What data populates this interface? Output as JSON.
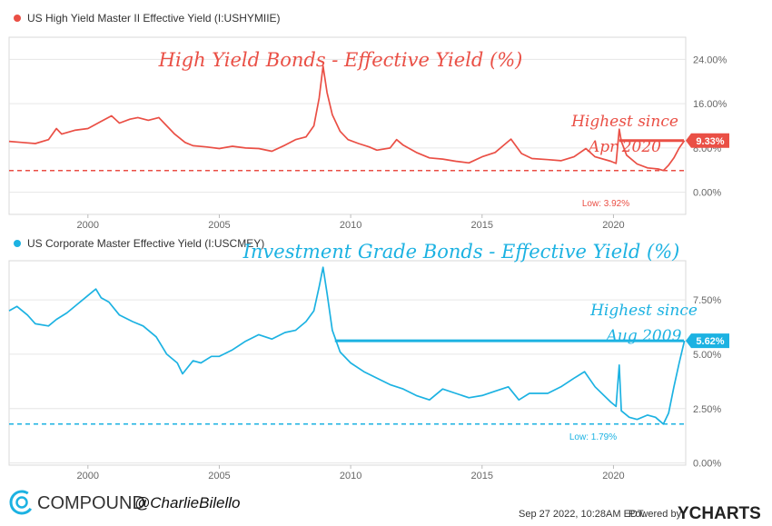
{
  "footer": {
    "brand": "COMPOUND",
    "handle": "@CharlieBilello",
    "timestamp": "Sep 27 2022, 10:28AM EDT.",
    "powered_by": "Powered by",
    "ycharts": "YCHARTS"
  },
  "colors": {
    "high_yield": "#ea4f45",
    "investment_grade": "#1cb2e2"
  },
  "chart_data": [
    {
      "type": "line",
      "legend": "US High Yield Master II Effective Yield (I:USHYMIIE)",
      "title": "High Yield Bonds - Effective Yield (%)",
      "x_ticks": [
        "2000",
        "2005",
        "2010",
        "2015",
        "2020"
      ],
      "y_ticks": [
        "0.00%",
        "8.00%",
        "16.00%",
        "24.00%"
      ],
      "xlim": [
        1997.0,
        2022.75
      ],
      "ylim": [
        -4,
        28
      ],
      "series": [
        {
          "x": [
            1997.0,
            1997.5,
            1998.0,
            1998.5,
            1998.8,
            1999.0,
            1999.5,
            2000.0,
            2000.5,
            2000.9,
            2001.2,
            2001.6,
            2001.9,
            2002.3,
            2002.7,
            2002.9,
            2003.3,
            2003.7,
            2004.0,
            2004.5,
            2005.0,
            2005.5,
            2006.0,
            2006.5,
            2007.0,
            2007.5,
            2007.9,
            2008.3,
            2008.6,
            2008.8,
            2008.95,
            2009.1,
            2009.3,
            2009.6,
            2009.9,
            2010.3,
            2010.7,
            2011.0,
            2011.5,
            2011.75,
            2012.0,
            2012.5,
            2013.0,
            2013.5,
            2014.0,
            2014.5,
            2015.0,
            2015.5,
            2015.9,
            2016.1,
            2016.5,
            2016.9,
            2017.5,
            2018.0,
            2018.5,
            2018.95,
            2019.3,
            2019.9,
            2020.1,
            2020.22,
            2020.3,
            2020.5,
            2020.9,
            2021.3,
            2021.7,
            2021.9,
            2022.1,
            2022.3,
            2022.5,
            2022.7
          ],
          "y": [
            9.2,
            9.0,
            8.8,
            9.5,
            11.5,
            10.5,
            11.2,
            11.5,
            12.8,
            13.8,
            12.5,
            13.2,
            13.5,
            13.0,
            13.5,
            12.5,
            10.5,
            9.0,
            8.4,
            8.2,
            7.9,
            8.3,
            8.0,
            7.9,
            7.4,
            8.5,
            9.5,
            10.0,
            12.0,
            17.0,
            22.8,
            18.0,
            14.0,
            11.0,
            9.5,
            8.8,
            8.2,
            7.6,
            8.0,
            9.5,
            8.5,
            7.2,
            6.2,
            6.0,
            5.6,
            5.3,
            6.4,
            7.2,
            8.8,
            9.6,
            7.0,
            6.1,
            5.9,
            5.7,
            6.4,
            7.9,
            6.4,
            5.6,
            5.2,
            11.4,
            9.2,
            6.7,
            5.1,
            4.4,
            4.2,
            3.92,
            4.9,
            6.2,
            8.0,
            9.33
          ],
          "low_value": 3.92,
          "low_label": "Low: 3.92%",
          "last_value": 9.33,
          "last_label": "9.33%",
          "highest_since_from": 2020.22,
          "annotation": [
            "Highest since",
            "Apr 2020"
          ]
        }
      ]
    },
    {
      "type": "line",
      "legend": "US Corporate Master Effective Yield (I:USCMEY)",
      "title": "Investment Grade Bonds - Effective Yield (%)",
      "x_ticks": [
        "2000",
        "2005",
        "2010",
        "2015",
        "2020"
      ],
      "y_ticks": [
        "0.00%",
        "2.50%",
        "5.00%",
        "7.50%"
      ],
      "xlim": [
        1997.0,
        2022.75
      ],
      "ylim": [
        -0.1,
        9.3
      ],
      "series": [
        {
          "x": [
            1997.0,
            1997.3,
            1997.7,
            1998.0,
            1998.5,
            1998.8,
            1999.2,
            1999.6,
            2000.0,
            2000.3,
            2000.5,
            2000.8,
            2001.2,
            2001.7,
            2002.1,
            2002.6,
            2003.0,
            2003.4,
            2003.6,
            2004.0,
            2004.3,
            2004.7,
            2005.0,
            2005.5,
            2006.0,
            2006.5,
            2007.0,
            2007.5,
            2007.9,
            2008.3,
            2008.6,
            2008.8,
            2008.95,
            2009.1,
            2009.3,
            2009.6,
            2010.0,
            2010.5,
            2011.0,
            2011.5,
            2012.0,
            2012.5,
            2013.0,
            2013.5,
            2014.0,
            2014.5,
            2015.0,
            2015.5,
            2016.0,
            2016.4,
            2016.8,
            2017.5,
            2018.0,
            2018.5,
            2018.9,
            2019.3,
            2019.9,
            2020.1,
            2020.22,
            2020.3,
            2020.6,
            2020.9,
            2021.3,
            2021.6,
            2021.9,
            2022.1,
            2022.3,
            2022.5,
            2022.7
          ],
          "y": [
            7.0,
            7.2,
            6.8,
            6.4,
            6.3,
            6.6,
            6.9,
            7.3,
            7.7,
            8.0,
            7.6,
            7.4,
            6.8,
            6.5,
            6.3,
            5.8,
            5.0,
            4.6,
            4.1,
            4.7,
            4.6,
            4.9,
            4.9,
            5.2,
            5.6,
            5.9,
            5.7,
            6.0,
            6.1,
            6.5,
            7.0,
            8.1,
            9.0,
            7.8,
            6.1,
            5.1,
            4.6,
            4.2,
            3.9,
            3.6,
            3.4,
            3.1,
            2.9,
            3.4,
            3.2,
            3.0,
            3.1,
            3.3,
            3.5,
            2.9,
            3.2,
            3.2,
            3.5,
            3.9,
            4.2,
            3.5,
            2.8,
            2.6,
            4.5,
            2.4,
            2.1,
            2.0,
            2.2,
            2.1,
            1.79,
            2.3,
            3.5,
            4.6,
            5.62
          ],
          "low_value": 1.79,
          "low_label": "Low: 1.79%",
          "last_value": 5.62,
          "last_label": "5.62%",
          "highest_since_from": 2009.4,
          "annotation": [
            "Highest since",
            "Aug 2009"
          ]
        }
      ]
    }
  ]
}
